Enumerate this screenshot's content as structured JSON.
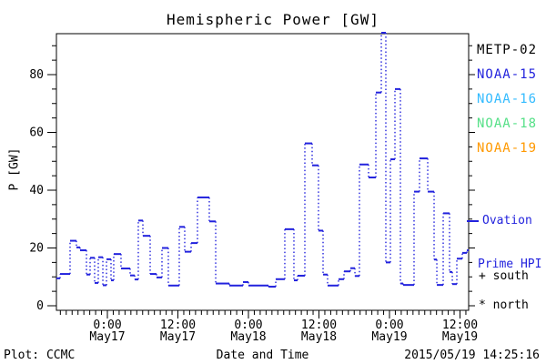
{
  "title": "Hemispheric Power [GW]",
  "axes": {
    "ylabel": "P [GW]",
    "xlabel": "Date and Time"
  },
  "legend": {
    "satellites": [
      {
        "name": "METP-02",
        "color": "#000000"
      },
      {
        "name": "NOAA-15",
        "color": "#2222dd"
      },
      {
        "name": "NOAA-16",
        "color": "#33bbff"
      },
      {
        "name": "NOAA-18",
        "color": "#55e087"
      },
      {
        "name": "NOAA-19",
        "color": "#ff9900"
      }
    ],
    "ovation": {
      "line1": "Ovation",
      "line2": "Prime HPI",
      "color": "#2222dd"
    },
    "hemisphere_markers": [
      {
        "symbol": "+",
        "label": "south"
      },
      {
        "symbol": "*",
        "label": "north"
      }
    ]
  },
  "footer": {
    "left": "Plot: CCMC",
    "center": "Date and Time",
    "right": "2015/05/19 14:25:16"
  },
  "chart_data": {
    "type": "line",
    "style": "steps-horizontal-solid-vertical-dotted",
    "title": "Hemispheric Power [GW]",
    "xlabel": "Date and Time",
    "ylabel": "P [GW]",
    "ylim": [
      0,
      94
    ],
    "yticks_major": [
      0,
      20,
      40,
      60,
      80
    ],
    "ytick_minor_step_gw": 5,
    "xtick_minor_step_hours": 1,
    "x_epoch": "2015-05-16 00:00 UT",
    "xlim_hours": [
      15.0,
      85.5
    ],
    "xticks_major": [
      {
        "hours": 24,
        "time": "0:00",
        "date": "May17"
      },
      {
        "hours": 36,
        "time": "12:00",
        "date": "May17"
      },
      {
        "hours": 48,
        "time": "0:00",
        "date": "May18"
      },
      {
        "hours": 60,
        "time": "12:00",
        "date": "May18"
      },
      {
        "hours": 72,
        "time": "0:00",
        "date": "May19"
      },
      {
        "hours": 84,
        "time": "12:00",
        "date": "May19"
      }
    ],
    "series": [
      {
        "name": "Ovation Prime HPI",
        "color": "#2222dd",
        "points_format": [
          "hours_since_epoch",
          "power_GW"
        ],
        "points": [
          [
            15.02,
            9.5
          ],
          [
            15.95,
            11.0
          ],
          [
            17.65,
            22.5
          ],
          [
            18.73,
            20.2
          ],
          [
            19.35,
            19.2
          ],
          [
            20.44,
            10.8
          ],
          [
            21.06,
            16.6
          ],
          [
            21.83,
            7.9
          ],
          [
            22.45,
            16.8
          ],
          [
            23.23,
            7.1
          ],
          [
            23.85,
            16.1
          ],
          [
            24.62,
            8.8
          ],
          [
            25.08,
            17.9
          ],
          [
            26.32,
            12.9
          ],
          [
            27.87,
            10.5
          ],
          [
            28.65,
            9.1
          ],
          [
            29.26,
            29.5
          ],
          [
            30.04,
            24.2
          ],
          [
            31.28,
            11.0
          ],
          [
            32.36,
            9.8
          ],
          [
            33.29,
            20.0
          ],
          [
            34.37,
            7.0
          ],
          [
            36.23,
            27.3
          ],
          [
            37.16,
            18.7
          ],
          [
            38.25,
            21.7
          ],
          [
            39.33,
            37.5
          ],
          [
            41.34,
            29.2
          ],
          [
            42.43,
            7.7
          ],
          [
            44.75,
            7.0
          ],
          [
            47.07,
            8.2
          ],
          [
            48.0,
            7.0
          ],
          [
            51.41,
            6.6
          ],
          [
            52.65,
            9.2
          ],
          [
            54.19,
            26.5
          ],
          [
            55.74,
            8.8
          ],
          [
            56.36,
            10.4
          ],
          [
            57.6,
            56.2
          ],
          [
            58.84,
            48.6
          ],
          [
            59.92,
            26.0
          ],
          [
            60.7,
            10.8
          ],
          [
            61.47,
            7.0
          ],
          [
            63.33,
            9.2
          ],
          [
            64.26,
            11.9
          ],
          [
            65.34,
            13.0
          ],
          [
            66.12,
            10.3
          ],
          [
            66.89,
            48.9
          ],
          [
            68.44,
            44.4
          ],
          [
            69.68,
            73.8
          ],
          [
            70.61,
            94.5
          ],
          [
            71.38,
            15.0
          ],
          [
            72.16,
            50.7
          ],
          [
            72.93,
            75.0
          ],
          [
            73.86,
            7.7
          ],
          [
            74.33,
            7.2
          ],
          [
            76.18,
            39.5
          ],
          [
            77.11,
            51.0
          ],
          [
            78.51,
            39.5
          ],
          [
            79.59,
            16.0
          ],
          [
            80.06,
            7.2
          ],
          [
            81.14,
            32.0
          ],
          [
            82.22,
            11.7
          ],
          [
            82.69,
            7.5
          ],
          [
            83.46,
            16.3
          ],
          [
            84.39,
            18.3
          ],
          [
            85.17,
            19.2
          ]
        ]
      }
    ]
  }
}
